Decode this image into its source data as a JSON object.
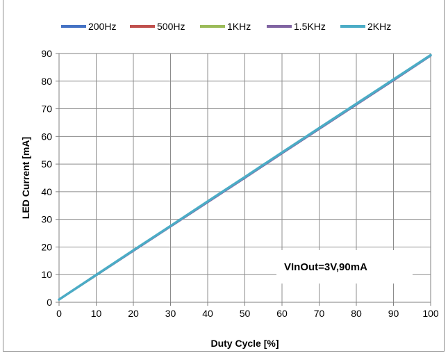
{
  "chart_data": {
    "type": "line",
    "title": "",
    "xlabel": "Duty Cycle [%]",
    "ylabel": "LED Current [mA]",
    "xlim": [
      0,
      100
    ],
    "ylim": [
      0,
      90
    ],
    "x_ticks": [
      0,
      10,
      20,
      30,
      40,
      50,
      60,
      70,
      80,
      90,
      100
    ],
    "y_ticks": [
      0,
      10,
      20,
      30,
      40,
      50,
      60,
      70,
      80,
      90
    ],
    "grid": true,
    "legend_position": "top",
    "annotation": "VInOut=3V,90mA",
    "series": [
      {
        "name": "200Hz",
        "color": "#4472C4",
        "x": [
          0,
          10,
          20,
          30,
          40,
          50,
          60,
          70,
          80,
          90,
          100
        ],
        "y": [
          1,
          9.8,
          18.7,
          27.5,
          36.3,
          45.1,
          54.0,
          62.8,
          71.6,
          80.4,
          89.3
        ]
      },
      {
        "name": "500Hz",
        "color": "#C0504D",
        "x": [
          0,
          10,
          20,
          30,
          40,
          50,
          60,
          70,
          80,
          90,
          100
        ],
        "y": [
          1,
          9.8,
          18.7,
          27.5,
          36.3,
          45.1,
          54.0,
          62.8,
          71.6,
          80.4,
          89.3
        ]
      },
      {
        "name": "1KHz",
        "color": "#9BBB59",
        "x": [
          0,
          10,
          20,
          30,
          40,
          50,
          60,
          70,
          80,
          90,
          100
        ],
        "y": [
          1,
          9.8,
          18.7,
          27.5,
          36.3,
          45.1,
          54.0,
          62.8,
          71.6,
          80.4,
          89.3
        ]
      },
      {
        "name": "1.5KHz",
        "color": "#8064A2",
        "x": [
          0,
          10,
          20,
          30,
          40,
          50,
          60,
          70,
          80,
          90,
          100
        ],
        "y": [
          1,
          9.8,
          18.6,
          27.4,
          36.2,
          45.0,
          53.9,
          62.7,
          71.5,
          80.3,
          89.2
        ]
      },
      {
        "name": "2KHz",
        "color": "#4BACC6",
        "x": [
          0,
          10,
          20,
          30,
          40,
          50,
          60,
          70,
          80,
          90,
          100
        ],
        "y": [
          1,
          9.9,
          18.8,
          27.6,
          36.5,
          45.3,
          54.2,
          63.0,
          71.8,
          80.6,
          89.4
        ]
      }
    ]
  }
}
